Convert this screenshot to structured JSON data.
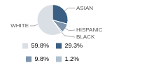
{
  "chart_data": {
    "type": "pie",
    "categories": [
      "WHITE",
      "ASIAN",
      "HISPANIC",
      "BLACK"
    ],
    "values": [
      59.8,
      29.3,
      9.8,
      1.2
    ],
    "value_labels": [
      "59.8%",
      "29.3%",
      "9.8%",
      "1.2%"
    ],
    "colors": [
      "#dadfe6",
      "#3a5f83",
      "#7e95ab",
      "#b1c0cd"
    ],
    "legend": "bottom"
  }
}
